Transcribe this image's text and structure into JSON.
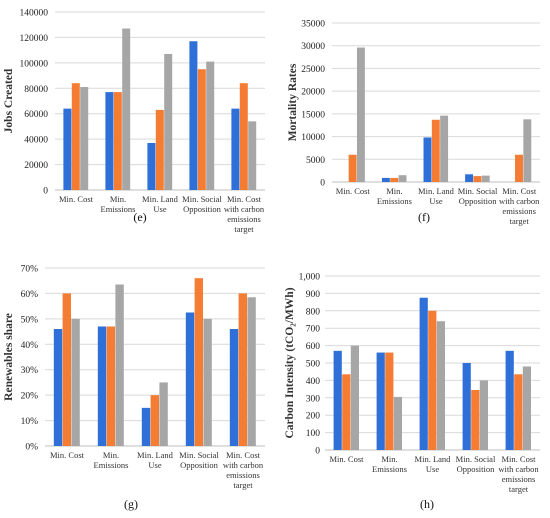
{
  "colors": {
    "s1": "#2E6FD8",
    "s2": "#F57C33",
    "s3": "#A6A6A6",
    "grid": "#D9D9D9",
    "axis": "#333333"
  },
  "chart_data": [
    {
      "type": "bar",
      "panel_label": "(e)",
      "ylabel": "Jobs Created",
      "ylim": [
        0,
        140000
      ],
      "yticks": [
        "0",
        "20000",
        "40000",
        "60000",
        "80000",
        "100000",
        "120000",
        "140000"
      ],
      "categories": [
        "Min. Cost",
        "Min. Emissions",
        "Min. Land Use",
        "Min. Social Opposition",
        "Min. Cost with carbon emissions target"
      ],
      "series": [
        {
          "values": [
            64000,
            77000,
            37000,
            117000,
            64000
          ]
        },
        {
          "values": [
            84000,
            77000,
            63000,
            95000,
            84000
          ]
        },
        {
          "values": [
            81000,
            127000,
            107000,
            101000,
            54000
          ]
        }
      ],
      "grid": true
    },
    {
      "type": "bar",
      "panel_label": "(f)",
      "ylabel": "Mortality Rates",
      "ylim": [
        0,
        35000
      ],
      "yticks": [
        "0",
        "5000",
        "10000",
        "15000",
        "20000",
        "25000",
        "30000",
        "35000"
      ],
      "categories": [
        "Min. Cost",
        "Min. Emissions",
        "Min. Land Use",
        "Min. Social Opposition",
        "Min. Cost with carbon emissions target"
      ],
      "series": [
        {
          "values": [
            0,
            900,
            9800,
            1700,
            0
          ]
        },
        {
          "values": [
            6000,
            900,
            13700,
            1300,
            6000
          ]
        },
        {
          "values": [
            29600,
            1500,
            14600,
            1400,
            13800
          ]
        }
      ],
      "grid": true
    },
    {
      "type": "bar",
      "panel_label": "(g)",
      "ylabel": "Renewables share",
      "ylim": [
        0,
        70
      ],
      "yticks": [
        "0%",
        "10%",
        "20%",
        "30%",
        "40%",
        "50%",
        "60%",
        "70%"
      ],
      "categories": [
        "Min. Cost",
        "Min. Emissions",
        "Min. Land Use",
        "Min. Social Opposition",
        "Min. Cost with carbon emissions target"
      ],
      "series": [
        {
          "values": [
            46,
            47,
            15,
            52.5,
            46
          ]
        },
        {
          "values": [
            60,
            47,
            20,
            66,
            60
          ]
        },
        {
          "values": [
            50,
            63.5,
            25,
            50,
            58.5
          ]
        }
      ],
      "grid": true
    },
    {
      "type": "bar",
      "panel_label": "(h)",
      "ylabel": "Carbon Intensity (tCO₂/MWh)",
      "ylim": [
        0,
        1000
      ],
      "yticks": [
        "0",
        "100",
        "200",
        "300",
        "400",
        "500",
        "600",
        "700",
        "800",
        "900",
        "1,000"
      ],
      "categories": [
        "Min. Cost",
        "Min. Emissions",
        "Min. Land Use",
        "Min. Social Opposition",
        "Min. Cost with carbon emissions target"
      ],
      "series": [
        {
          "values": [
            570,
            560,
            875,
            500,
            570
          ]
        },
        {
          "values": [
            435,
            560,
            800,
            345,
            435
          ]
        },
        {
          "values": [
            600,
            305,
            740,
            400,
            480
          ]
        }
      ],
      "grid": true
    }
  ]
}
